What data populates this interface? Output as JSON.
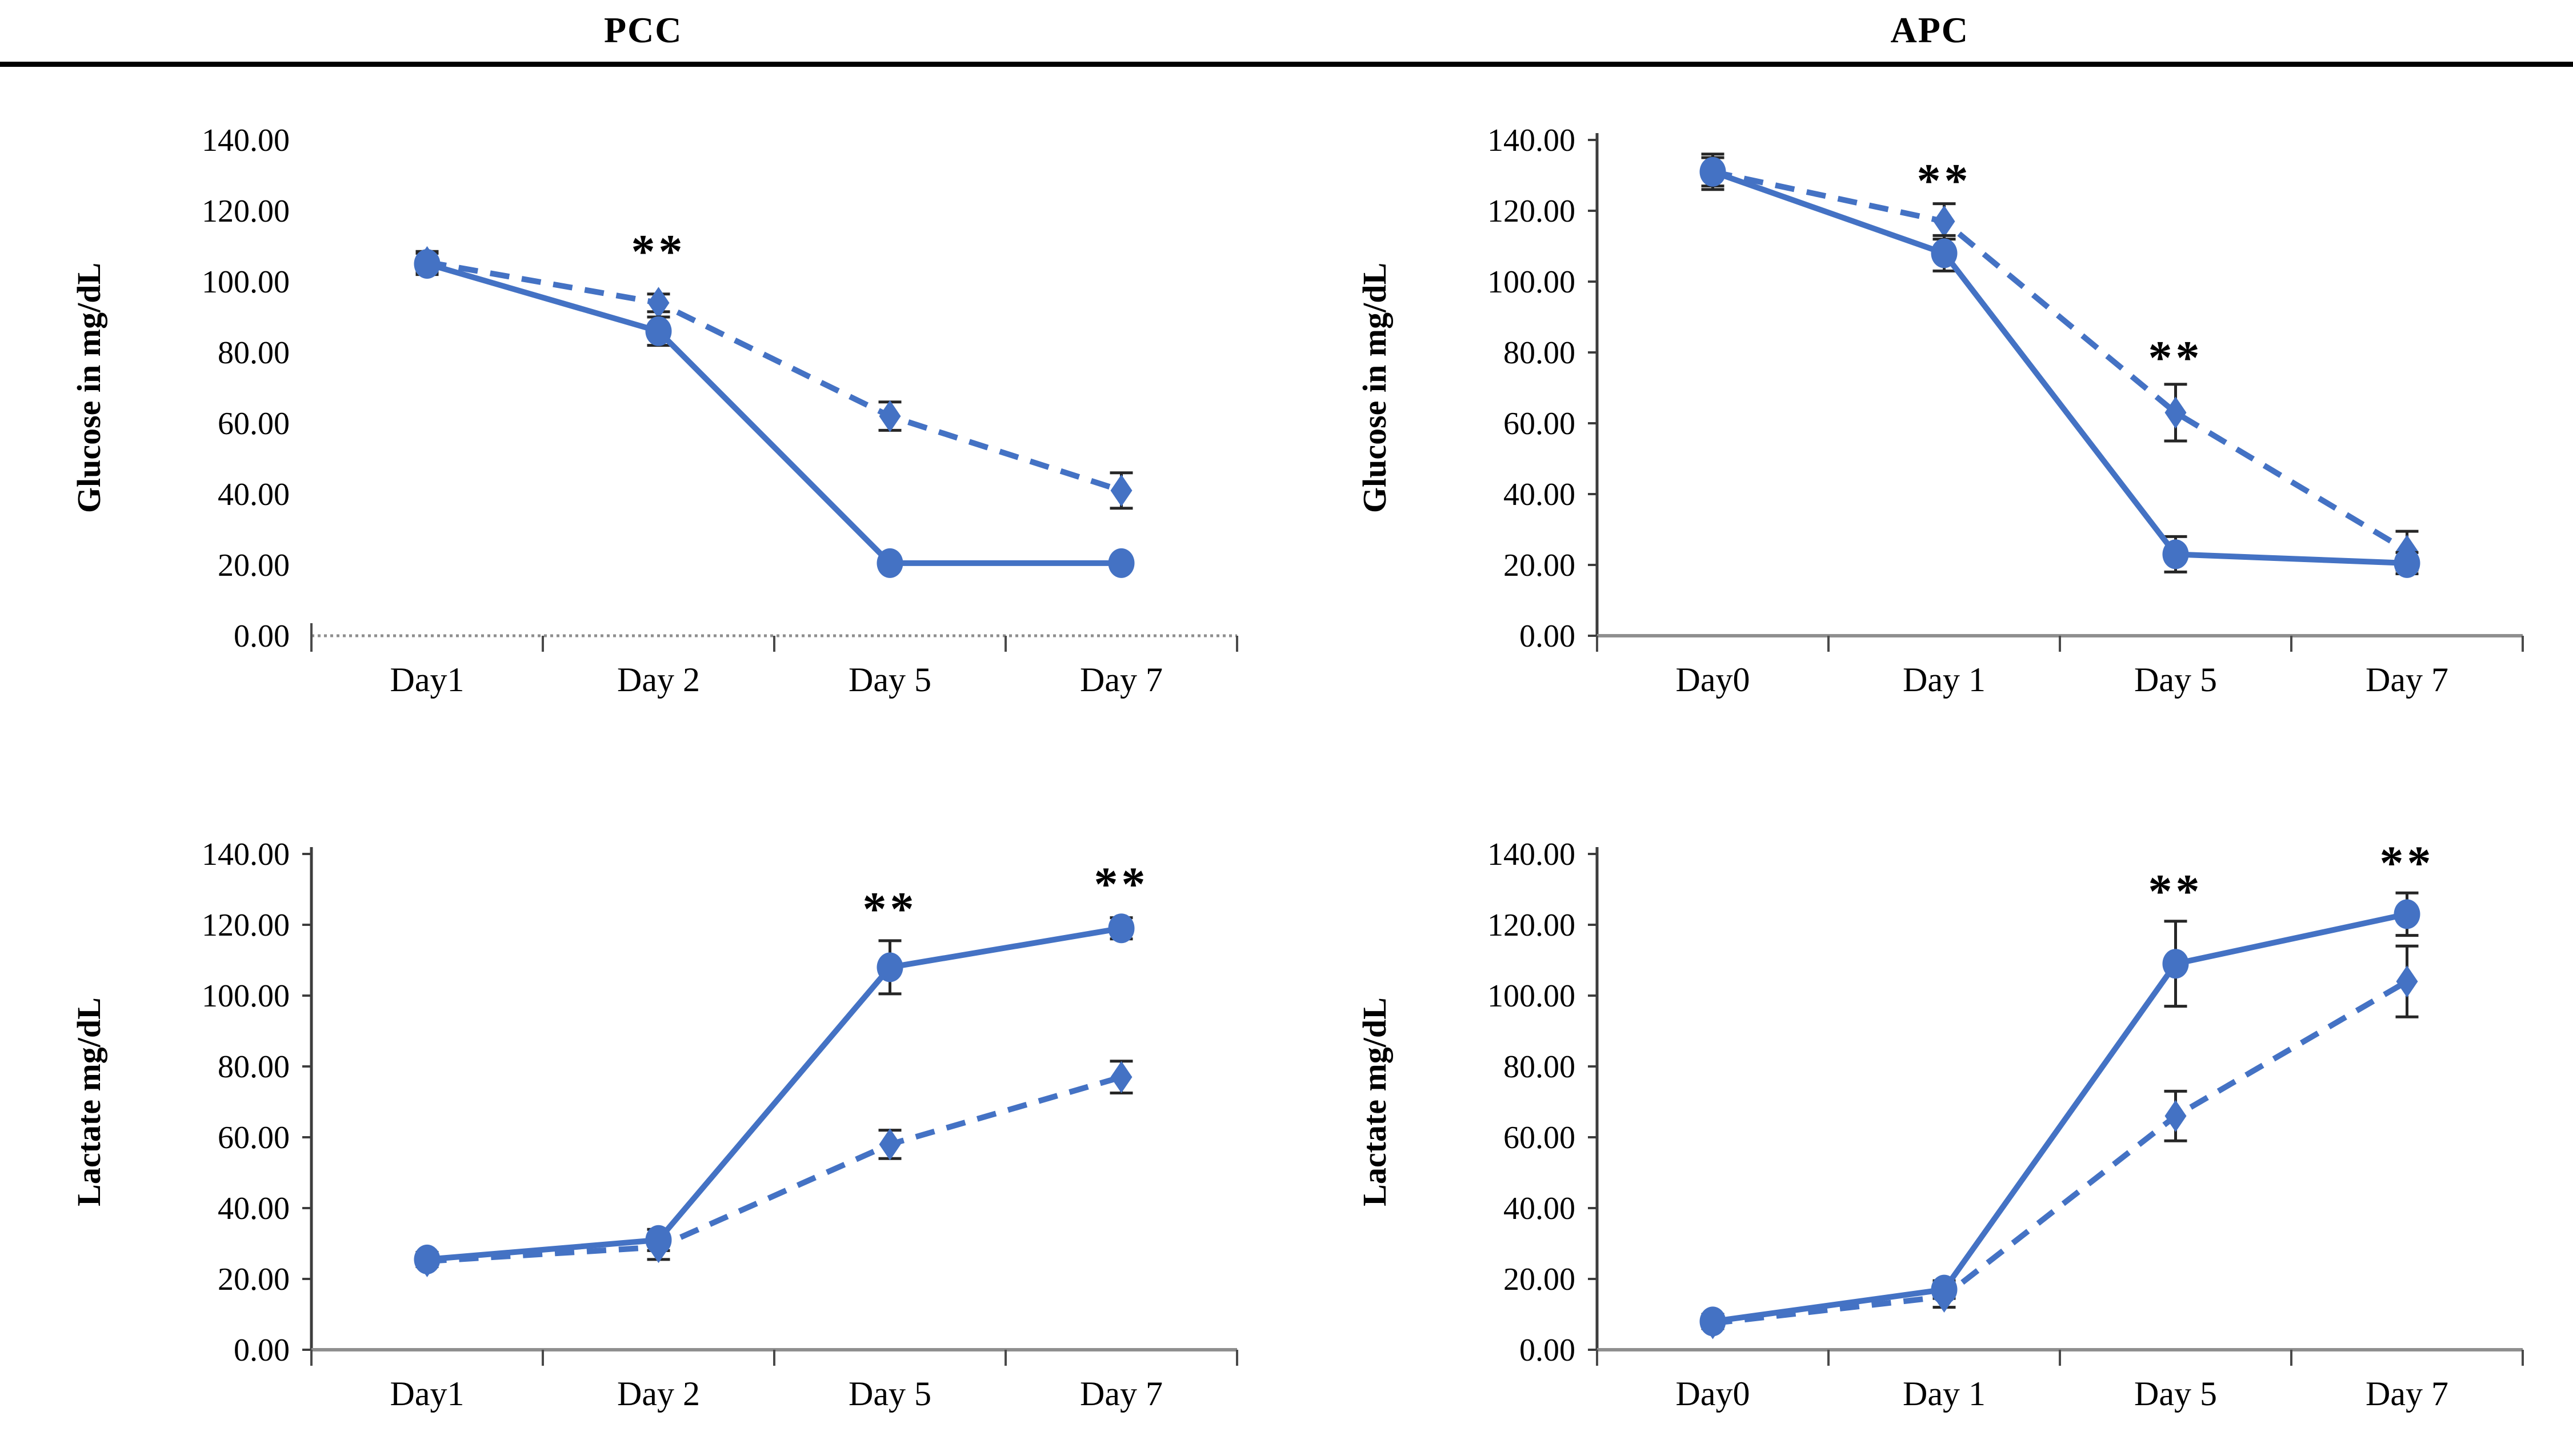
{
  "header": {
    "titles": [
      "PCC",
      "APC"
    ]
  },
  "style": {
    "series_blue": "#4472C4",
    "error_bar_color": "#262626",
    "x_axis_color": "#8f8f8f",
    "y_axis_color": "#3d3d3d",
    "tick_color": "#4a4a4a",
    "text_color": "#000000",
    "divider_color": "#000000"
  },
  "chart_data": [
    {
      "id": "pcc-glucose",
      "type": "line",
      "panel": "PCC",
      "ylabel": "Glucose in mg/dL",
      "xlabel": "",
      "categories": [
        "Day1",
        "Day 2",
        "Day 5",
        "Day 7"
      ],
      "ylim": [
        0,
        140
      ],
      "ytick_step": 20,
      "ytick_decimals": 2,
      "grid": false,
      "legend": "none",
      "y_axis_line": false,
      "series": [
        {
          "name": "dashed-diamond",
          "marker": "diamond",
          "line_style": "dashed",
          "values": [
            105.5,
            94,
            62,
            41
          ],
          "errors": [
            3,
            2.5,
            4,
            5
          ]
        },
        {
          "name": "solid-circle",
          "marker": "circle",
          "line_style": "solid",
          "values": [
            105,
            86,
            20.5,
            20.5
          ],
          "errors": [
            3,
            4,
            0,
            0
          ]
        }
      ],
      "annotations": [
        {
          "category_index": 1,
          "value": 104,
          "text": "**"
        }
      ]
    },
    {
      "id": "apc-glucose",
      "type": "line",
      "panel": "APC",
      "ylabel": "Glucose in mg/dL",
      "xlabel": "",
      "categories": [
        "Day0",
        "Day 1",
        "Day 5",
        "Day 7"
      ],
      "ylim": [
        0,
        140
      ],
      "ytick_step": 20,
      "ytick_decimals": 2,
      "grid": false,
      "legend": "none",
      "y_axis_line": true,
      "series": [
        {
          "name": "dashed-diamond",
          "marker": "diamond",
          "line_style": "dashed",
          "values": [
            131,
            117,
            63,
            24
          ],
          "errors": [
            4,
            5,
            8,
            5.5
          ]
        },
        {
          "name": "solid-circle",
          "marker": "circle",
          "line_style": "solid",
          "values": [
            131,
            108,
            23,
            20.5
          ],
          "errors": [
            5,
            5,
            5,
            3
          ]
        }
      ],
      "annotations": [
        {
          "category_index": 1,
          "value": 124,
          "text": "**"
        },
        {
          "category_index": 2,
          "value": 74,
          "text": "**"
        }
      ]
    },
    {
      "id": "pcc-lactate",
      "type": "line",
      "panel": "PCC",
      "ylabel": "Lactate mg/dL",
      "xlabel": "",
      "categories": [
        "Day1",
        "Day 2",
        "Day 5",
        "Day 7"
      ],
      "ylim": [
        0,
        140
      ],
      "ytick_step": 20,
      "ytick_decimals": 2,
      "grid": false,
      "legend": "none",
      "y_axis_line": true,
      "series": [
        {
          "name": "dashed-diamond",
          "marker": "diamond",
          "line_style": "dashed",
          "values": [
            25,
            29,
            58,
            77
          ],
          "errors": [
            1.5,
            3.5,
            4,
            4.5
          ]
        },
        {
          "name": "solid-circle",
          "marker": "circle",
          "line_style": "solid",
          "values": [
            25.5,
            31,
            108,
            119
          ],
          "errors": [
            2,
            3,
            7.5,
            3
          ]
        }
      ],
      "annotations": [
        {
          "category_index": 2,
          "value": 120,
          "text": "**"
        },
        {
          "category_index": 3,
          "value": 127,
          "text": "**"
        }
      ]
    },
    {
      "id": "apc-lactate",
      "type": "line",
      "panel": "APC",
      "ylabel": "Lactate mg/dL",
      "xlabel": "",
      "categories": [
        "Day0",
        "Day 1",
        "Day 5",
        "Day 7"
      ],
      "ylim": [
        0,
        140
      ],
      "ytick_step": 20,
      "ytick_decimals": 2,
      "grid": false,
      "legend": "none",
      "y_axis_line": true,
      "series": [
        {
          "name": "dashed-diamond",
          "marker": "diamond",
          "line_style": "dashed",
          "values": [
            7.5,
            15,
            66,
            104
          ],
          "errors": [
            1.5,
            3,
            7,
            10
          ]
        },
        {
          "name": "solid-circle",
          "marker": "circle",
          "line_style": "solid",
          "values": [
            8,
            17,
            109,
            123
          ],
          "errors": [
            2,
            2.5,
            12,
            6
          ]
        }
      ],
      "annotations": [
        {
          "category_index": 2,
          "value": 125,
          "text": "**"
        },
        {
          "category_index": 3,
          "value": 133,
          "text": "**"
        }
      ]
    }
  ]
}
